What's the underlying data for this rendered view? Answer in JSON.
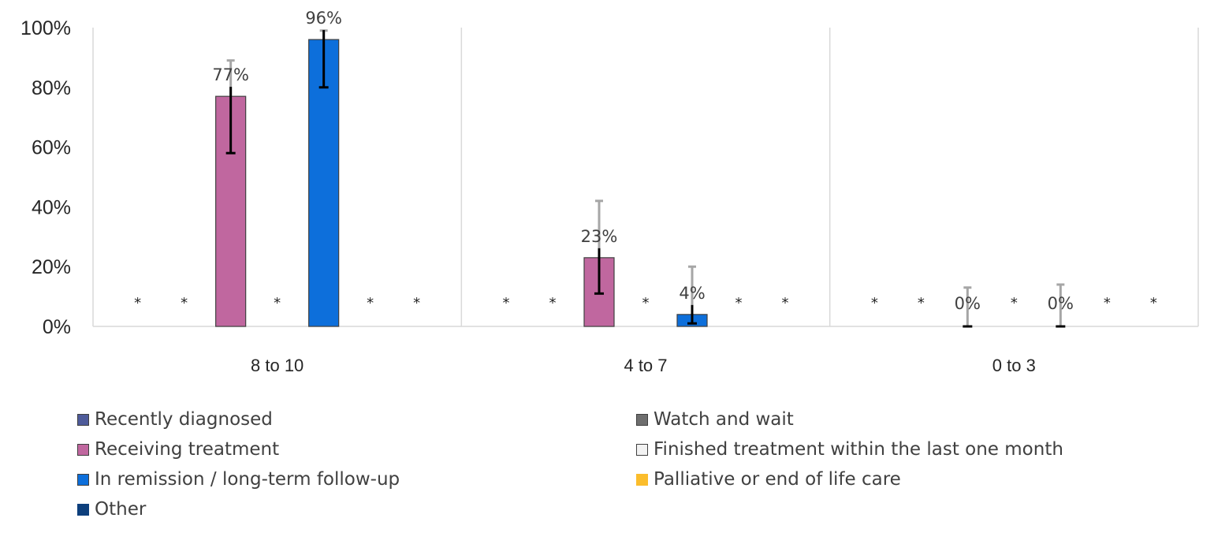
{
  "chart_data": {
    "type": "bar",
    "categories": [
      "8 to 10",
      "4 to 7",
      "0 to 3"
    ],
    "ylim": [
      0,
      100
    ],
    "yticks": [
      "0%",
      "20%",
      "40%",
      "60%",
      "80%",
      "100%"
    ],
    "grid": "vertical category separators",
    "legend_position": "bottom",
    "suppressed_marker": "*",
    "series": [
      {
        "name": "Recently diagnosed",
        "color": "#4e5b9a",
        "values": [
          null,
          null,
          null
        ]
      },
      {
        "name": "Watch and wait",
        "color": "#6e6e6e",
        "values": [
          null,
          null,
          null
        ]
      },
      {
        "name": "Receiving treatment",
        "color": "#c0679f",
        "values": [
          77,
          23,
          0
        ],
        "labels": [
          "77%",
          "23%",
          "0%"
        ],
        "err_low": [
          58,
          11,
          0
        ],
        "err_high": [
          89,
          42,
          13
        ]
      },
      {
        "name": "Finished treatment within the last one month",
        "color": "#f2f2f2",
        "values": [
          null,
          null,
          null
        ]
      },
      {
        "name": "In remission / long-term follow-up",
        "color": "#0d6fdb",
        "values": [
          96,
          4,
          0
        ],
        "labels": [
          "96%",
          "4%",
          "0%"
        ],
        "err_low": [
          80,
          1,
          0
        ],
        "err_high": [
          99,
          20,
          14
        ]
      },
      {
        "name": "Palliative or end of life care",
        "color": "#fbbd2c",
        "values": [
          null,
          null,
          null
        ]
      },
      {
        "name": "Other",
        "color": "#0d3f7c",
        "values": [
          null,
          null,
          null
        ]
      }
    ]
  }
}
